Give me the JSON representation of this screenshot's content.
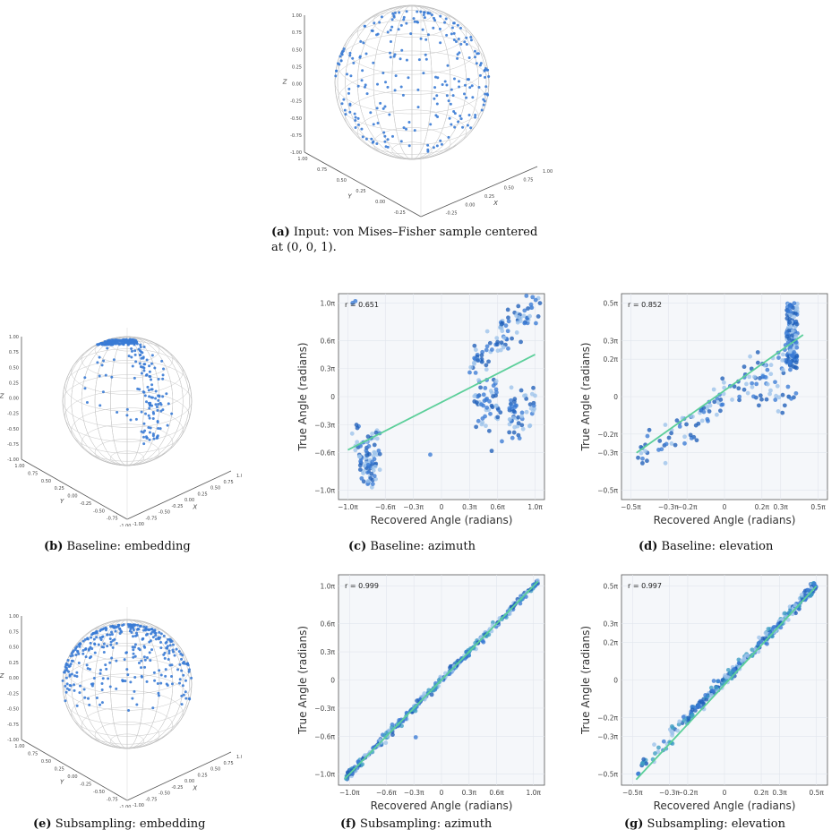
{
  "captions": {
    "a": {
      "label": "(a)",
      "text": "Input: von Mises–Fisher sample centered",
      "text2": "at (0, 0, 1)."
    },
    "b": {
      "label": "(b)",
      "text": "Baseline: embedding"
    },
    "c": {
      "label": "(c)",
      "text": "Baseline: azimuth"
    },
    "d": {
      "label": "(d)",
      "text": "Baseline: elevation"
    },
    "e": {
      "label": "(e)",
      "text": "Subsampling: embedding"
    },
    "f": {
      "label": "(f)",
      "text": "Subsampling: azimuth"
    },
    "g": {
      "label": "(g)",
      "text": "Subsampling: elevation"
    }
  },
  "colors": {
    "point": "#3a7bd5",
    "point_dark": "#1f5fb8",
    "point_light": "#9cc3ea",
    "point_teal": "#3d9ec4",
    "fit_line": "#5ccf9a",
    "wire": "#c8c8c8",
    "plot_bg": "#f5f7fa",
    "grid": "#e1e5ec"
  },
  "chart_data": [
    {
      "id": "a",
      "type": "scatter",
      "kind": "sphere3d",
      "distribution": "uniform",
      "axis_labels": {
        "x": "X",
        "y": "Y",
        "z": "Z"
      },
      "z_ticks": [
        "1.00",
        "0.75",
        "0.50",
        "0.25",
        "0.00",
        "-0.25",
        "-0.50",
        "-0.75",
        "-1.00"
      ],
      "y_ticks": [
        "1.00",
        "0.75",
        "0.50",
        "0.25",
        "0.00",
        "-0.25",
        "-0.50"
      ],
      "x_ticks": [
        "-0.50",
        "-0.25",
        "0.00",
        "0.25",
        "0.50",
        "0.75",
        "1.00"
      ]
    },
    {
      "id": "b",
      "type": "scatter",
      "kind": "sphere3d",
      "distribution": "arc",
      "axis_labels": {
        "x": "X",
        "y": "Y",
        "z": "Z"
      },
      "z_ticks": [
        "1.00",
        "0.75",
        "0.50",
        "0.25",
        "0.00",
        "-0.25",
        "-0.50",
        "-0.75",
        "-1.00"
      ],
      "y_ticks": [
        "1.00",
        "0.75",
        "0.50",
        "0.25",
        "0.00",
        "-0.25",
        "-0.50",
        "-0.75",
        "-1.00"
      ],
      "x_ticks": [
        "-1.00",
        "-0.75",
        "-0.50",
        "-0.25",
        "0.00",
        "0.25",
        "0.50",
        "0.75",
        "1.00"
      ]
    },
    {
      "id": "c",
      "type": "scatter",
      "xlabel": "Recovered Angle (radians)",
      "ylabel": "True Angle (radians)",
      "annotation": "r = 0.651",
      "xlim": [
        -1.1,
        1.1
      ],
      "ylim": [
        -1.1,
        1.1
      ],
      "x_ticks": [
        -1.0,
        -0.6,
        -0.3,
        0,
        0.3,
        0.6,
        1.0
      ],
      "x_tick_labels": [
        "−1.0π",
        "−0.6π",
        "−0.3π",
        "0",
        "0.3π",
        "0.6π",
        "1.0π"
      ],
      "y_ticks": [
        -1.0,
        -0.6,
        -0.3,
        0,
        0.3,
        0.6,
        1.0
      ],
      "y_tick_labels": [
        "−1.0π",
        "−0.6π",
        "−0.3π",
        "0",
        "0.3π",
        "0.6π",
        "1.0π"
      ],
      "fit_line": [
        [
          -1.0,
          -0.57
        ],
        [
          1.0,
          0.45
        ]
      ],
      "pattern": "baseline_azimuth",
      "grid": true
    },
    {
      "id": "d",
      "type": "scatter",
      "xlabel": "Recovered Angle (radians)",
      "ylabel": "True Angle (radians)",
      "annotation": "r = 0.852",
      "xlim": [
        -0.55,
        0.55
      ],
      "ylim": [
        -0.55,
        0.55
      ],
      "x_ticks": [
        -0.5,
        -0.3,
        -0.2,
        0,
        0.2,
        0.3,
        0.5
      ],
      "x_tick_labels": [
        "−0.5π",
        "−0.3π",
        "−0.2π",
        "0",
        "0.2π",
        "0.3π",
        "0.5π"
      ],
      "y_ticks": [
        -0.5,
        -0.3,
        -0.2,
        0,
        0.2,
        0.3,
        0.5
      ],
      "y_tick_labels": [
        "−0.5π",
        "−0.3π",
        "−0.2π",
        "0",
        "0.2π",
        "0.3π",
        "0.5π"
      ],
      "fit_line": [
        [
          -0.47,
          -0.3
        ],
        [
          0.42,
          0.33
        ]
      ],
      "pattern": "baseline_elevation",
      "grid": true
    },
    {
      "id": "e",
      "type": "scatter",
      "kind": "sphere3d",
      "distribution": "cap",
      "axis_labels": {
        "x": "X",
        "y": "Y",
        "z": "Z"
      },
      "z_ticks": [
        "1.00",
        "0.75",
        "0.50",
        "0.25",
        "0.00",
        "-0.25",
        "-0.50",
        "-0.75",
        "-1.00"
      ],
      "y_ticks": [
        "1.00",
        "0.75",
        "0.50",
        "0.25",
        "0.00",
        "-0.25",
        "-0.50",
        "-0.75",
        "-1.00"
      ],
      "x_ticks": [
        "-1.00",
        "-0.75",
        "-0.50",
        "-0.25",
        "0.00",
        "0.25",
        "0.50",
        "0.75",
        "1.00"
      ]
    },
    {
      "id": "f",
      "type": "scatter",
      "xlabel": "Recovered Angle (radians)",
      "ylabel": "True Angle (radians)",
      "annotation": "r = 0.999",
      "xlim": [
        -1.12,
        1.12
      ],
      "ylim": [
        -1.12,
        1.12
      ],
      "x_ticks": [
        -1.0,
        -0.6,
        -0.3,
        0,
        0.3,
        0.6,
        1.0
      ],
      "x_tick_labels": [
        "−1.0π",
        "−0.6π",
        "−0.3π",
        "0",
        "0.3π",
        "0.6π",
        "1.0π"
      ],
      "y_ticks": [
        -1.0,
        -0.6,
        -0.3,
        0,
        0.3,
        0.6,
        1.0
      ],
      "y_tick_labels": [
        "−1.0π",
        "−0.6π",
        "−0.3π",
        "0",
        "0.3π",
        "0.6π",
        "1.0π"
      ],
      "fit_line": [
        [
          -1.05,
          -1.05
        ],
        [
          1.05,
          1.05
        ]
      ],
      "pattern": "diagonal",
      "grid": true
    },
    {
      "id": "g",
      "type": "scatter",
      "xlabel": "Recovered Angle (radians)",
      "ylabel": "True Angle (radians)",
      "annotation": "r = 0.997",
      "xlim": [
        -0.56,
        0.56
      ],
      "ylim": [
        -0.56,
        0.56
      ],
      "x_ticks": [
        -0.5,
        -0.3,
        -0.2,
        0,
        0.2,
        0.3,
        0.5
      ],
      "x_tick_labels": [
        "−0.5π",
        "−0.3π",
        "−0.2π",
        "0",
        "0.2π",
        "0.3π",
        "0.5π"
      ],
      "y_ticks": [
        -0.5,
        -0.3,
        -0.2,
        0,
        0.2,
        0.3,
        0.5
      ],
      "y_tick_labels": [
        "−0.5π",
        "−0.3π",
        "−0.2π",
        "0",
        "0.2π",
        "0.3π",
        "0.5π"
      ],
      "fit_line": [
        [
          -0.48,
          -0.53
        ],
        [
          0.5,
          0.5
        ]
      ],
      "pattern": "diagonal_elev",
      "grid": true
    }
  ]
}
